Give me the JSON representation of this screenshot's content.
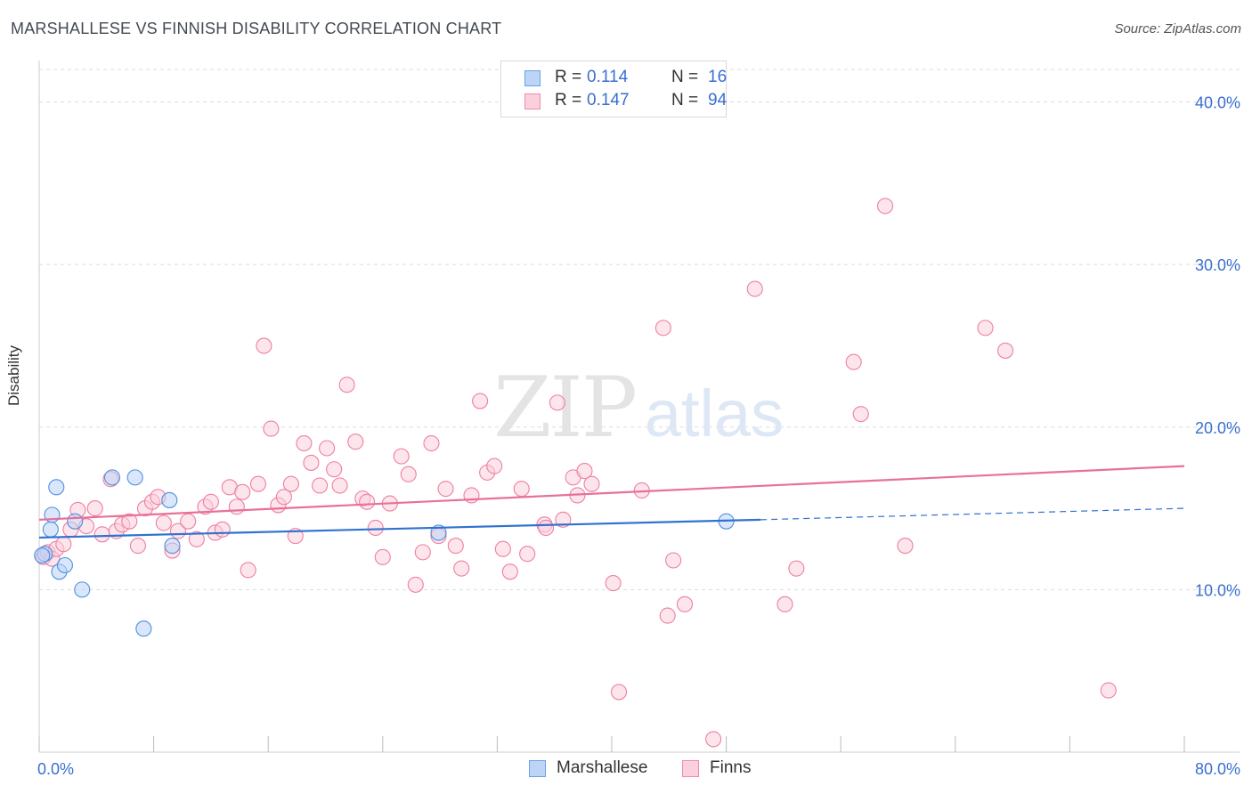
{
  "title": "MARSHALLESE VS FINNISH DISABILITY CORRELATION CHART",
  "source": "Source: ZipAtlas.com",
  "watermark": {
    "zip": "ZIP",
    "atlas": "atlas"
  },
  "stats": [
    {
      "r_label": "R =",
      "r_value": "0.114",
      "n_label": "N =",
      "n_value": "16",
      "color": "#6aa0e8",
      "fill": "#bcd4f5"
    },
    {
      "r_label": "R =",
      "r_value": "0.147",
      "n_label": "N =",
      "n_value": "94",
      "color": "#f08aa9",
      "fill": "#fbd0dd"
    }
  ],
  "legend": [
    {
      "label": "Marshallese",
      "color": "#6aa0e8",
      "fill": "#bcd4f5"
    },
    {
      "label": "Finns",
      "color": "#f08aa9",
      "fill": "#fbd0dd"
    }
  ],
  "chart_data": {
    "type": "scatter",
    "ylabel": "Disability",
    "xlabel": "",
    "xlim": [
      0,
      80
    ],
    "ylim": [
      0,
      42
    ],
    "x_tick_labels": [
      "0.0%",
      "80.0%"
    ],
    "y_ticks": [
      10,
      20,
      30,
      40
    ],
    "y_tick_labels": [
      "10.0%",
      "20.0%",
      "30.0%",
      "40.0%"
    ],
    "grid": true,
    "legend_position": "bottom-center",
    "series": [
      {
        "name": "Marshallese",
        "color": "#4f8fe0",
        "fill": "#bcd4f5",
        "trend": {
          "x0": 0,
          "y0": 13.2,
          "x1": 50.4,
          "y1": 14.3,
          "x_dash_end": 80,
          "y_dash_end": 15.0,
          "color": "#2f72d0"
        },
        "points": [
          [
            0.4,
            12.2
          ],
          [
            0.8,
            13.7
          ],
          [
            0.9,
            14.6
          ],
          [
            1.2,
            16.3
          ],
          [
            1.4,
            11.1
          ],
          [
            1.8,
            11.5
          ],
          [
            2.5,
            14.2
          ],
          [
            3.0,
            10.0
          ],
          [
            5.1,
            16.9
          ],
          [
            6.7,
            16.9
          ],
          [
            7.3,
            7.6
          ],
          [
            9.1,
            15.5
          ],
          [
            9.3,
            12.7
          ],
          [
            27.9,
            13.5
          ],
          [
            48.0,
            14.2
          ],
          [
            0.2,
            12.1
          ]
        ]
      },
      {
        "name": "Finns",
        "color": "#ee7fa2",
        "fill": "#fbd0dd",
        "trend": {
          "x0": 0,
          "y0": 14.3,
          "x1": 80,
          "y1": 17.6,
          "color": "#e8709a"
        },
        "points": [
          [
            0.3,
            12.0
          ],
          [
            0.6,
            12.3
          ],
          [
            0.9,
            11.9
          ],
          [
            1.2,
            12.5
          ],
          [
            1.7,
            12.8
          ],
          [
            2.2,
            13.7
          ],
          [
            2.7,
            14.9
          ],
          [
            3.3,
            13.9
          ],
          [
            3.9,
            15.0
          ],
          [
            4.4,
            13.4
          ],
          [
            5.0,
            16.8
          ],
          [
            5.4,
            13.6
          ],
          [
            5.8,
            14.0
          ],
          [
            6.3,
            14.2
          ],
          [
            6.9,
            12.7
          ],
          [
            7.4,
            15.0
          ],
          [
            7.9,
            15.4
          ],
          [
            8.3,
            15.7
          ],
          [
            8.7,
            14.1
          ],
          [
            9.3,
            12.4
          ],
          [
            9.7,
            13.6
          ],
          [
            10.4,
            14.2
          ],
          [
            11.0,
            13.1
          ],
          [
            11.6,
            15.1
          ],
          [
            12.0,
            15.4
          ],
          [
            12.3,
            13.5
          ],
          [
            12.8,
            13.7
          ],
          [
            13.3,
            16.3
          ],
          [
            13.8,
            15.1
          ],
          [
            14.2,
            16.0
          ],
          [
            14.6,
            11.2
          ],
          [
            15.3,
            16.5
          ],
          [
            15.7,
            25.0
          ],
          [
            16.2,
            19.9
          ],
          [
            16.7,
            15.2
          ],
          [
            17.1,
            15.7
          ],
          [
            17.6,
            16.5
          ],
          [
            17.9,
            13.3
          ],
          [
            18.5,
            19.0
          ],
          [
            19.0,
            17.8
          ],
          [
            19.6,
            16.4
          ],
          [
            20.1,
            18.7
          ],
          [
            20.6,
            17.4
          ],
          [
            21.0,
            16.4
          ],
          [
            21.5,
            22.6
          ],
          [
            22.1,
            19.1
          ],
          [
            22.6,
            15.6
          ],
          [
            22.9,
            15.4
          ],
          [
            23.5,
            13.8
          ],
          [
            24.0,
            12.0
          ],
          [
            24.5,
            15.3
          ],
          [
            25.3,
            18.2
          ],
          [
            25.8,
            17.1
          ],
          [
            26.3,
            10.3
          ],
          [
            26.8,
            12.3
          ],
          [
            27.4,
            19.0
          ],
          [
            27.9,
            13.3
          ],
          [
            28.4,
            16.2
          ],
          [
            29.1,
            12.7
          ],
          [
            29.5,
            11.3
          ],
          [
            30.2,
            15.8
          ],
          [
            30.8,
            21.6
          ],
          [
            31.3,
            17.2
          ],
          [
            31.8,
            17.6
          ],
          [
            32.4,
            12.5
          ],
          [
            32.9,
            11.1
          ],
          [
            33.7,
            16.2
          ],
          [
            34.1,
            12.2
          ],
          [
            35.3,
            14.0
          ],
          [
            35.4,
            13.8
          ],
          [
            36.2,
            21.5
          ],
          [
            36.6,
            14.3
          ],
          [
            37.3,
            16.9
          ],
          [
            37.6,
            15.8
          ],
          [
            38.1,
            17.3
          ],
          [
            38.6,
            16.5
          ],
          [
            40.1,
            10.4
          ],
          [
            40.5,
            3.7
          ],
          [
            42.1,
            16.1
          ],
          [
            43.6,
            26.1
          ],
          [
            43.9,
            8.4
          ],
          [
            44.3,
            11.8
          ],
          [
            45.1,
            9.1
          ],
          [
            47.1,
            0.8
          ],
          [
            50.0,
            28.5
          ],
          [
            52.1,
            9.1
          ],
          [
            52.9,
            11.3
          ],
          [
            56.9,
            24.0
          ],
          [
            57.4,
            20.8
          ],
          [
            59.1,
            33.6
          ],
          [
            60.5,
            12.7
          ],
          [
            66.1,
            26.1
          ],
          [
            67.5,
            24.7
          ],
          [
            74.7,
            3.8
          ]
        ]
      }
    ]
  }
}
